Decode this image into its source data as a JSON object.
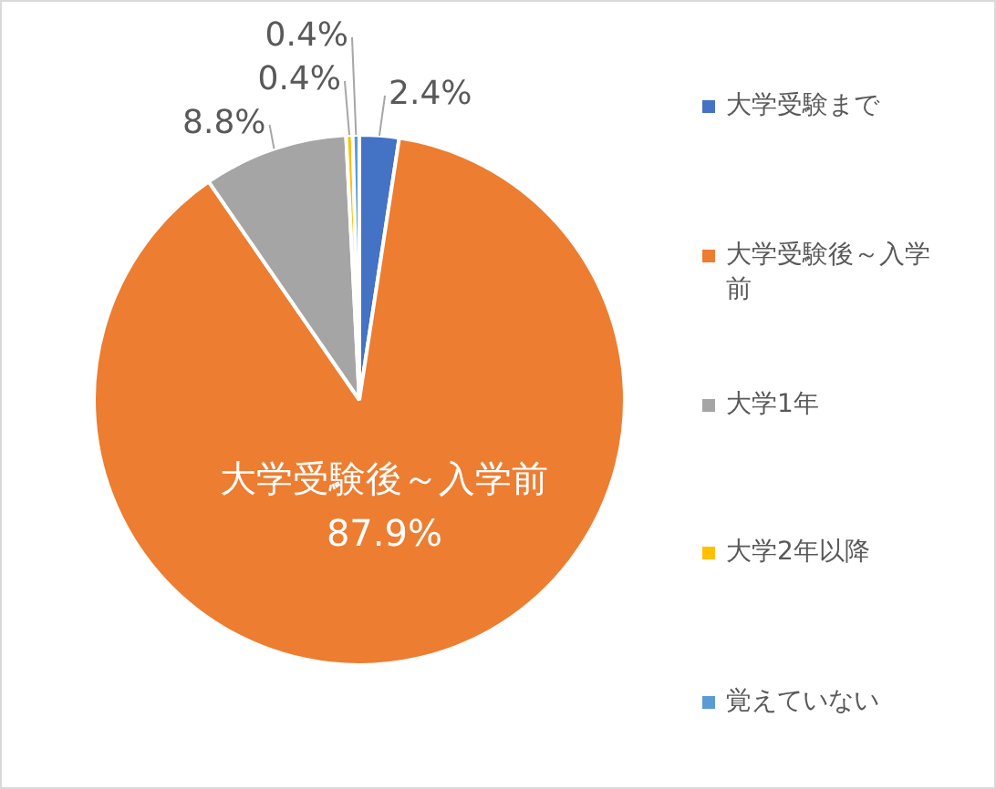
{
  "chart_data": {
    "type": "pie",
    "categories": [
      "大学受験まで",
      "大学受験後～入学前",
      "大学1年",
      "大学2年以降",
      "覚えていない"
    ],
    "values": [
      2.4,
      87.9,
      8.8,
      0.4,
      0.4
    ],
    "colors": [
      "#4472c4",
      "#ed7d31",
      "#a5a5a5",
      "#ffc000",
      "#5b9bd5"
    ],
    "value_labels": [
      "2.4%",
      "大学受験後～入学前\n87.9%",
      "8.8%",
      "0.4%",
      "0.4%"
    ],
    "legend": "right"
  }
}
